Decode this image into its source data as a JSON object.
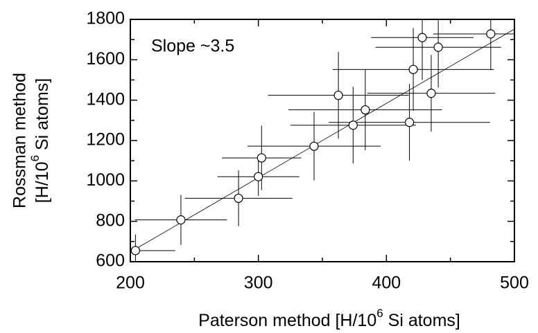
{
  "chart_data": {
    "type": "scatter",
    "annotation": "Slope ~3.5",
    "xlabel": [
      "Paterson method [H/10",
      "6",
      " Si atoms]"
    ],
    "ylabel": [
      "Rossman method",
      "[H/10",
      "6",
      " Si atoms]"
    ],
    "x": [
      204,
      239.5,
      284.5,
      300,
      302.5,
      343.5,
      362.5,
      374,
      383.5,
      418,
      421,
      428,
      435,
      440.5,
      481.5
    ],
    "y": [
      655,
      807,
      914,
      1021,
      1114,
      1172,
      1424,
      1276,
      1352,
      1290,
      1552,
      1710,
      1434,
      1662,
      1728
    ],
    "xerr": [
      31,
      36,
      42,
      32,
      31,
      52,
      55,
      49,
      60,
      63,
      63,
      40,
      50,
      49,
      45
    ],
    "yerr": [
      80,
      124,
      138,
      95,
      160,
      170,
      215,
      190,
      200,
      190,
      205,
      210,
      190,
      200,
      180
    ],
    "fit": {
      "x": [
        200,
        500
      ],
      "y": [
        648,
        1752
      ]
    },
    "color": "#000000",
    "xlim": [
      200,
      500
    ],
    "xticks": [
      200,
      300,
      400,
      500
    ],
    "xminorticks": [
      250,
      350,
      450
    ],
    "ylim": [
      600,
      1800
    ],
    "yticks": [
      600,
      800,
      1000,
      1200,
      1400,
      1600,
      1800
    ],
    "yminorticks": [
      700,
      900,
      1100,
      1300,
      1500,
      1700
    ]
  }
}
